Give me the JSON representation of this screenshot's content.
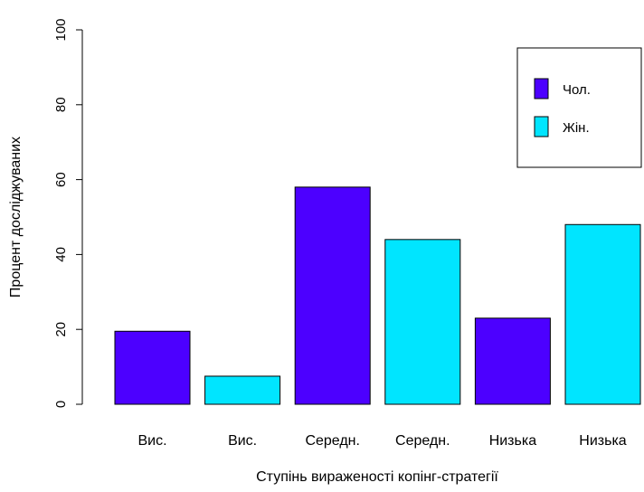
{
  "chart_data": {
    "type": "bar",
    "categories": [
      "Вис.",
      "Вис.",
      "Середн.",
      "Середн.",
      "Низька",
      "Низька"
    ],
    "values": [
      19.5,
      7.5,
      58,
      44,
      23,
      48
    ],
    "bar_series": [
      "Чол.",
      "Жін.",
      "Чол.",
      "Жін.",
      "Чол.",
      "Жін."
    ],
    "xlabel": "Ступінь вираженості копінг-стратегії",
    "ylabel": "Процент досліджуваних",
    "ylim": [
      0,
      100
    ],
    "yticks": [
      0,
      20,
      40,
      60,
      80,
      100
    ],
    "grid": false,
    "legend": {
      "position": "top-right",
      "entries": [
        {
          "label": "Чол.",
          "color": "#4c00ff"
        },
        {
          "label": "Жін.",
          "color": "#00e5ff"
        }
      ]
    },
    "colors": {
      "Чол.": "#4c00ff",
      "Жін.": "#00e5ff"
    }
  }
}
